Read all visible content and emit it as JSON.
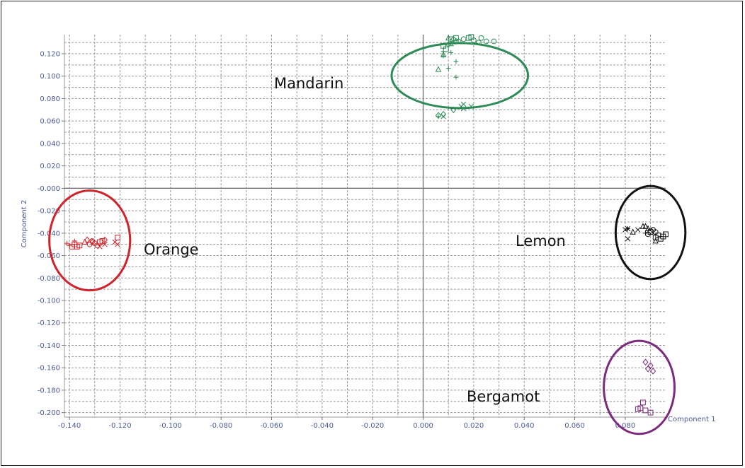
{
  "chart_data": {
    "type": "scatter",
    "title": "",
    "xlabel": "Component 1",
    "ylabel": "Component 2",
    "xlim": [
      -0.142,
      0.096
    ],
    "ylim": [
      -0.204,
      0.137
    ],
    "grid": true,
    "x_ticks": [
      "-0.140",
      "-0.120",
      "-0.100",
      "-0.080",
      "-0.060",
      "-0.040",
      "-0.020",
      "0.000",
      "0.020",
      "0.040",
      "0.060",
      "0.080"
    ],
    "y_ticks": [
      "0.120",
      "0.100",
      "0.080",
      "0.060",
      "0.040",
      "0.020",
      "-0.000",
      "-0.020",
      "-0.040",
      "-0.060",
      "-0.080",
      "-0.100",
      "-0.120",
      "-0.140",
      "-0.160",
      "-0.180",
      "-0.200"
    ],
    "clusters": [
      {
        "label": "Mandarin",
        "color": "#2e8b57",
        "ring": {
          "cx": 0.0145,
          "cy": 0.1005,
          "rx": 0.027,
          "ry": 0.029
        }
      },
      {
        "label": "Orange",
        "color": "#d0232a",
        "ring": {
          "cx": -0.132,
          "cy": -0.0465,
          "rx": 0.016,
          "ry": 0.0445
        }
      },
      {
        "label": "Lemon",
        "color": "#111111",
        "ring": {
          "cx": 0.09,
          "cy": -0.0395,
          "rx": 0.0138,
          "ry": 0.0415
        }
      },
      {
        "label": "Bergamot",
        "color": "#7b2a7e",
        "ring": {
          "cx": 0.0855,
          "cy": -0.1775,
          "rx": 0.014,
          "ry": 0.0415
        }
      }
    ],
    "series": [
      {
        "cluster": "Mandarin",
        "color": "#2e8b57",
        "points": [
          [
            0.011,
            0.133,
            "square"
          ],
          [
            0.013,
            0.134,
            "square"
          ],
          [
            0.018,
            0.134,
            "square"
          ],
          [
            0.019,
            0.135,
            "square"
          ],
          [
            0.008,
            0.127,
            "square"
          ],
          [
            0.009,
            0.124,
            "square"
          ],
          [
            0.012,
            0.133,
            "diamond"
          ],
          [
            0.01,
            0.128,
            "diamond"
          ],
          [
            0.013,
            0.131,
            "diamond"
          ],
          [
            0.006,
            0.065,
            "diamond"
          ],
          [
            0.008,
            0.066,
            "diamond"
          ],
          [
            0.012,
            0.07,
            "diamond"
          ],
          [
            0.016,
            0.133,
            "circle"
          ],
          [
            0.02,
            0.132,
            "circle"
          ],
          [
            0.023,
            0.134,
            "circle"
          ],
          [
            0.025,
            0.131,
            "circle"
          ],
          [
            0.028,
            0.131,
            "circle"
          ],
          [
            0.014,
            0.131,
            "circle"
          ],
          [
            0.022,
            0.13,
            "circle"
          ],
          [
            0.01,
            0.134,
            "triangle"
          ],
          [
            0.011,
            0.129,
            "triangle"
          ],
          [
            0.006,
            0.106,
            "triangle"
          ],
          [
            0.008,
            0.119,
            "triangle"
          ],
          [
            0.008,
            0.122,
            "plus"
          ],
          [
            0.011,
            0.121,
            "plus"
          ],
          [
            0.013,
            0.113,
            "plus"
          ],
          [
            0.01,
            0.107,
            "plus"
          ],
          [
            0.013,
            0.099,
            "plus"
          ],
          [
            0.008,
            0.118,
            "plus"
          ],
          [
            0.006,
            0.064,
            "plus"
          ],
          [
            0.015,
            0.073,
            "cross"
          ],
          [
            0.016,
            0.075,
            "cross"
          ],
          [
            0.019,
            0.073,
            "cross"
          ],
          [
            0.016,
            0.071,
            "cross"
          ],
          [
            0.008,
            0.064,
            "cross"
          ]
        ]
      },
      {
        "cluster": "Orange",
        "color": "#d0232a",
        "points": [
          [
            -0.139,
            -0.052,
            "square"
          ],
          [
            -0.137,
            -0.052,
            "square"
          ],
          [
            -0.138,
            -0.05,
            "square"
          ],
          [
            -0.136,
            -0.051,
            "square"
          ],
          [
            -0.128,
            -0.048,
            "square"
          ],
          [
            -0.127,
            -0.047,
            "square"
          ],
          [
            -0.121,
            -0.044,
            "square"
          ],
          [
            -0.131,
            -0.048,
            "diamond"
          ],
          [
            -0.133,
            -0.046,
            "diamond"
          ],
          [
            -0.126,
            -0.046,
            "diamond"
          ],
          [
            -0.132,
            -0.05,
            "circle"
          ],
          [
            -0.13,
            -0.049,
            "circle"
          ],
          [
            -0.129,
            -0.051,
            "circle"
          ],
          [
            -0.131,
            -0.047,
            "circle"
          ],
          [
            -0.141,
            -0.049,
            "plus"
          ],
          [
            -0.14,
            -0.051,
            "plus"
          ],
          [
            -0.138,
            -0.047,
            "plus"
          ],
          [
            -0.137,
            -0.05,
            "plus"
          ],
          [
            -0.128,
            -0.052,
            "cross"
          ],
          [
            -0.126,
            -0.05,
            "cross"
          ],
          [
            -0.122,
            -0.048,
            "cross"
          ],
          [
            -0.121,
            -0.05,
            "cross"
          ],
          [
            -0.134,
            -0.048,
            "triangle"
          ]
        ]
      },
      {
        "cluster": "Lemon",
        "color": "#111111",
        "points": [
          [
            0.093,
            -0.042,
            "square"
          ],
          [
            0.094,
            -0.045,
            "square"
          ],
          [
            0.096,
            -0.041,
            "square"
          ],
          [
            0.095,
            -0.043,
            "square"
          ],
          [
            0.092,
            -0.044,
            "square"
          ],
          [
            0.09,
            -0.039,
            "square"
          ],
          [
            0.087,
            -0.034,
            "triangle"
          ],
          [
            0.083,
            -0.039,
            "triangle"
          ],
          [
            0.089,
            -0.036,
            "triangle"
          ],
          [
            0.092,
            -0.047,
            "triangle"
          ],
          [
            0.088,
            -0.034,
            "triangle"
          ],
          [
            0.09,
            -0.038,
            "circle"
          ],
          [
            0.091,
            -0.037,
            "circle"
          ],
          [
            0.092,
            -0.039,
            "circle"
          ],
          [
            0.089,
            -0.041,
            "circle"
          ],
          [
            0.081,
            -0.036,
            "cross"
          ],
          [
            0.08,
            -0.037,
            "cross"
          ],
          [
            0.081,
            -0.045,
            "cross"
          ],
          [
            0.085,
            -0.037,
            "cross"
          ],
          [
            0.081,
            -0.036,
            "plus"
          ],
          [
            0.088,
            -0.04,
            "plus"
          ]
        ]
      },
      {
        "cluster": "Bergamot",
        "color": "#7b2a7e",
        "points": [
          [
            0.087,
            -0.191,
            "square"
          ],
          [
            0.086,
            -0.196,
            "square"
          ],
          [
            0.088,
            -0.198,
            "square"
          ],
          [
            0.09,
            -0.2,
            "square"
          ],
          [
            0.085,
            -0.197,
            "square"
          ],
          [
            0.088,
            -0.155,
            "diamond"
          ],
          [
            0.089,
            -0.161,
            "diamond"
          ],
          [
            0.091,
            -0.163,
            "diamond"
          ],
          [
            0.09,
            -0.158,
            "diamond"
          ]
        ]
      }
    ]
  }
}
